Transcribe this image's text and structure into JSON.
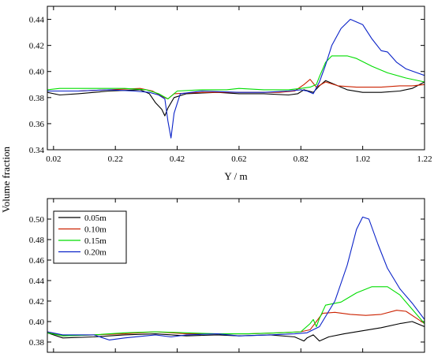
{
  "shared_ylabel": "Volume fraction",
  "chart_data": [
    {
      "type": "line",
      "xlabel": "Y / m",
      "ylabel": "",
      "xlim": [
        0.0,
        1.22
      ],
      "ylim": [
        0.34,
        0.45
      ],
      "xticks": [
        "0.02",
        "0.22",
        "0.42",
        "0.62",
        "0.82",
        "1.02",
        "1.22"
      ],
      "yticks": [
        "0.34",
        "0.36",
        "0.38",
        "0.40",
        "0.42",
        "0.44"
      ],
      "legend": false,
      "series": [
        {
          "name": "0.05m",
          "color": "#000000",
          "points": [
            [
              0,
              0.384
            ],
            [
              0.04,
              0.382
            ],
            [
              0.1,
              0.383
            ],
            [
              0.2,
              0.385
            ],
            [
              0.3,
              0.386
            ],
            [
              0.33,
              0.383
            ],
            [
              0.35,
              0.376
            ],
            [
              0.37,
              0.371
            ],
            [
              0.38,
              0.366
            ],
            [
              0.39,
              0.372
            ],
            [
              0.41,
              0.38
            ],
            [
              0.45,
              0.383
            ],
            [
              0.55,
              0.384
            ],
            [
              0.62,
              0.383
            ],
            [
              0.7,
              0.383
            ],
            [
              0.78,
              0.382
            ],
            [
              0.81,
              0.383
            ],
            [
              0.83,
              0.386
            ],
            [
              0.86,
              0.384
            ],
            [
              0.88,
              0.389
            ],
            [
              0.9,
              0.393
            ],
            [
              0.93,
              0.39
            ],
            [
              0.97,
              0.386
            ],
            [
              1.02,
              0.384
            ],
            [
              1.08,
              0.384
            ],
            [
              1.14,
              0.385
            ],
            [
              1.18,
              0.387
            ],
            [
              1.22,
              0.392
            ]
          ]
        },
        {
          "name": "0.10m",
          "color": "#cc2200",
          "points": [
            [
              0,
              0.385
            ],
            [
              0.1,
              0.385
            ],
            [
              0.2,
              0.386
            ],
            [
              0.3,
              0.387
            ],
            [
              0.34,
              0.385
            ],
            [
              0.37,
              0.381
            ],
            [
              0.39,
              0.379
            ],
            [
              0.41,
              0.383
            ],
            [
              0.5,
              0.384
            ],
            [
              0.62,
              0.384
            ],
            [
              0.75,
              0.384
            ],
            [
              0.8,
              0.385
            ],
            [
              0.83,
              0.39
            ],
            [
              0.85,
              0.394
            ],
            [
              0.87,
              0.388
            ],
            [
              0.9,
              0.392
            ],
            [
              0.94,
              0.389
            ],
            [
              1.0,
              0.388
            ],
            [
              1.08,
              0.388
            ],
            [
              1.14,
              0.389
            ],
            [
              1.18,
              0.389
            ],
            [
              1.22,
              0.39
            ]
          ]
        },
        {
          "name": "0.15m",
          "color": "#00dd00",
          "points": [
            [
              0,
              0.386
            ],
            [
              0.04,
              0.387
            ],
            [
              0.15,
              0.387
            ],
            [
              0.25,
              0.387
            ],
            [
              0.32,
              0.386
            ],
            [
              0.36,
              0.383
            ],
            [
              0.39,
              0.379
            ],
            [
              0.42,
              0.385
            ],
            [
              0.5,
              0.386
            ],
            [
              0.58,
              0.386
            ],
            [
              0.62,
              0.387
            ],
            [
              0.7,
              0.386
            ],
            [
              0.78,
              0.386
            ],
            [
              0.82,
              0.387
            ],
            [
              0.85,
              0.388
            ],
            [
              0.87,
              0.39
            ],
            [
              0.88,
              0.396
            ],
            [
              0.9,
              0.407
            ],
            [
              0.92,
              0.412
            ],
            [
              0.97,
              0.412
            ],
            [
              1.0,
              0.41
            ],
            [
              1.05,
              0.404
            ],
            [
              1.1,
              0.399
            ],
            [
              1.16,
              0.395
            ],
            [
              1.22,
              0.392
            ]
          ]
        },
        {
          "name": "0.20m",
          "color": "#0a22c8",
          "points": [
            [
              0,
              0.385
            ],
            [
              0.1,
              0.385
            ],
            [
              0.2,
              0.386
            ],
            [
              0.28,
              0.385
            ],
            [
              0.33,
              0.384
            ],
            [
              0.36,
              0.382
            ],
            [
              0.38,
              0.379
            ],
            [
              0.39,
              0.362
            ],
            [
              0.4,
              0.349
            ],
            [
              0.41,
              0.368
            ],
            [
              0.43,
              0.383
            ],
            [
              0.5,
              0.385
            ],
            [
              0.62,
              0.384
            ],
            [
              0.7,
              0.384
            ],
            [
              0.78,
              0.385
            ],
            [
              0.82,
              0.386
            ],
            [
              0.84,
              0.385
            ],
            [
              0.86,
              0.383
            ],
            [
              0.88,
              0.392
            ],
            [
              0.9,
              0.405
            ],
            [
              0.92,
              0.42
            ],
            [
              0.95,
              0.433
            ],
            [
              0.98,
              0.44
            ],
            [
              1.02,
              0.436
            ],
            [
              1.05,
              0.425
            ],
            [
              1.08,
              0.416
            ],
            [
              1.1,
              0.415
            ],
            [
              1.13,
              0.407
            ],
            [
              1.16,
              0.402
            ],
            [
              1.22,
              0.397
            ]
          ]
        }
      ]
    },
    {
      "type": "line",
      "xlabel": "",
      "ylabel": "",
      "xlim": [
        0.0,
        1.22
      ],
      "ylim": [
        0.37,
        0.52
      ],
      "xticks": [
        "0.02",
        "0.22",
        "0.42",
        "0.62",
        "0.82",
        "1.02",
        "1.22"
      ],
      "yticks": [
        "0.38",
        "0.40",
        "0.42",
        "0.44",
        "0.46",
        "0.48",
        "0.50"
      ],
      "legend": true,
      "legend_position": "top-left",
      "series": [
        {
          "name": "0.05m",
          "color": "#000000",
          "points": [
            [
              0,
              0.389
            ],
            [
              0.05,
              0.384
            ],
            [
              0.15,
              0.385
            ],
            [
              0.25,
              0.387
            ],
            [
              0.35,
              0.388
            ],
            [
              0.45,
              0.386
            ],
            [
              0.55,
              0.387
            ],
            [
              0.62,
              0.386
            ],
            [
              0.72,
              0.387
            ],
            [
              0.8,
              0.385
            ],
            [
              0.83,
              0.381
            ],
            [
              0.84,
              0.384
            ],
            [
              0.86,
              0.387
            ],
            [
              0.88,
              0.381
            ],
            [
              0.91,
              0.385
            ],
            [
              0.96,
              0.388
            ],
            [
              1.02,
              0.391
            ],
            [
              1.08,
              0.394
            ],
            [
              1.14,
              0.398
            ],
            [
              1.18,
              0.4
            ],
            [
              1.22,
              0.395
            ]
          ]
        },
        {
          "name": "0.10m",
          "color": "#cc2200",
          "points": [
            [
              0,
              0.39
            ],
            [
              0.05,
              0.386
            ],
            [
              0.15,
              0.387
            ],
            [
              0.25,
              0.388
            ],
            [
              0.35,
              0.39
            ],
            [
              0.45,
              0.388
            ],
            [
              0.55,
              0.388
            ],
            [
              0.65,
              0.388
            ],
            [
              0.75,
              0.389
            ],
            [
              0.82,
              0.39
            ],
            [
              0.85,
              0.392
            ],
            [
              0.87,
              0.4
            ],
            [
              0.89,
              0.408
            ],
            [
              0.93,
              0.409
            ],
            [
              0.98,
              0.407
            ],
            [
              1.03,
              0.406
            ],
            [
              1.08,
              0.407
            ],
            [
              1.13,
              0.411
            ],
            [
              1.16,
              0.41
            ],
            [
              1.22,
              0.398
            ]
          ]
        },
        {
          "name": "0.15m",
          "color": "#00dd00",
          "points": [
            [
              0,
              0.389
            ],
            [
              0.05,
              0.386
            ],
            [
              0.15,
              0.387
            ],
            [
              0.25,
              0.389
            ],
            [
              0.35,
              0.39
            ],
            [
              0.45,
              0.389
            ],
            [
              0.55,
              0.388
            ],
            [
              0.65,
              0.388
            ],
            [
              0.75,
              0.389
            ],
            [
              0.82,
              0.39
            ],
            [
              0.85,
              0.398
            ],
            [
              0.86,
              0.402
            ],
            [
              0.87,
              0.395
            ],
            [
              0.88,
              0.403
            ],
            [
              0.9,
              0.416
            ],
            [
              0.95,
              0.419
            ],
            [
              1.0,
              0.428
            ],
            [
              1.05,
              0.434
            ],
            [
              1.1,
              0.434
            ],
            [
              1.14,
              0.426
            ],
            [
              1.18,
              0.412
            ],
            [
              1.22,
              0.398
            ]
          ]
        },
        {
          "name": "0.20m",
          "color": "#0a22c8",
          "points": [
            [
              0,
              0.39
            ],
            [
              0.05,
              0.387
            ],
            [
              0.15,
              0.387
            ],
            [
              0.2,
              0.382
            ],
            [
              0.25,
              0.384
            ],
            [
              0.35,
              0.387
            ],
            [
              0.4,
              0.385
            ],
            [
              0.45,
              0.387
            ],
            [
              0.55,
              0.388
            ],
            [
              0.62,
              0.386
            ],
            [
              0.72,
              0.387
            ],
            [
              0.8,
              0.388
            ],
            [
              0.84,
              0.389
            ],
            [
              0.88,
              0.395
            ],
            [
              0.93,
              0.42
            ],
            [
              0.97,
              0.455
            ],
            [
              1.0,
              0.49
            ],
            [
              1.02,
              0.502
            ],
            [
              1.04,
              0.5
            ],
            [
              1.07,
              0.475
            ],
            [
              1.1,
              0.452
            ],
            [
              1.14,
              0.432
            ],
            [
              1.18,
              0.418
            ],
            [
              1.22,
              0.402
            ]
          ]
        }
      ]
    }
  ]
}
